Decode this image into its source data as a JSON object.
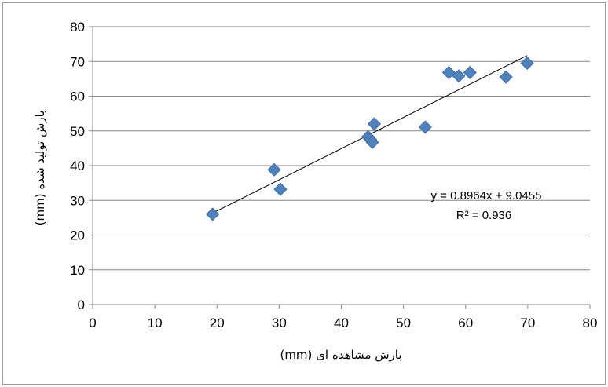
{
  "chart_data": {
    "type": "scatter",
    "xlabel": "بارش مشاهده ای (mm)",
    "ylabel": "بارش تولید شده (mm)",
    "xlim": [
      0,
      80
    ],
    "ylim": [
      0,
      80
    ],
    "xticks": [
      0,
      10,
      20,
      30,
      40,
      50,
      60,
      70,
      80
    ],
    "yticks": [
      0,
      10,
      20,
      30,
      40,
      50,
      60,
      70,
      80
    ],
    "grid": "horizontal",
    "marker": "diamond",
    "marker_color": "#4f81bd",
    "points": [
      {
        "x": 19.3,
        "y": 26.0
      },
      {
        "x": 29.2,
        "y": 38.8
      },
      {
        "x": 30.2,
        "y": 33.2
      },
      {
        "x": 44.3,
        "y": 48.3
      },
      {
        "x": 44.7,
        "y": 47.5
      },
      {
        "x": 45.0,
        "y": 46.7
      },
      {
        "x": 45.3,
        "y": 52.0
      },
      {
        "x": 53.5,
        "y": 51.1
      },
      {
        "x": 57.3,
        "y": 66.8
      },
      {
        "x": 58.9,
        "y": 65.8
      },
      {
        "x": 60.7,
        "y": 66.8
      },
      {
        "x": 66.5,
        "y": 65.5
      },
      {
        "x": 69.9,
        "y": 69.5
      }
    ],
    "trendline": {
      "slope": 0.8964,
      "intercept": 9.0455,
      "x_range": [
        19.3,
        69.9
      ]
    },
    "annotations": {
      "equation": "y = 0.8964x + 9.0455",
      "r_squared": "R² = 0.936"
    }
  }
}
